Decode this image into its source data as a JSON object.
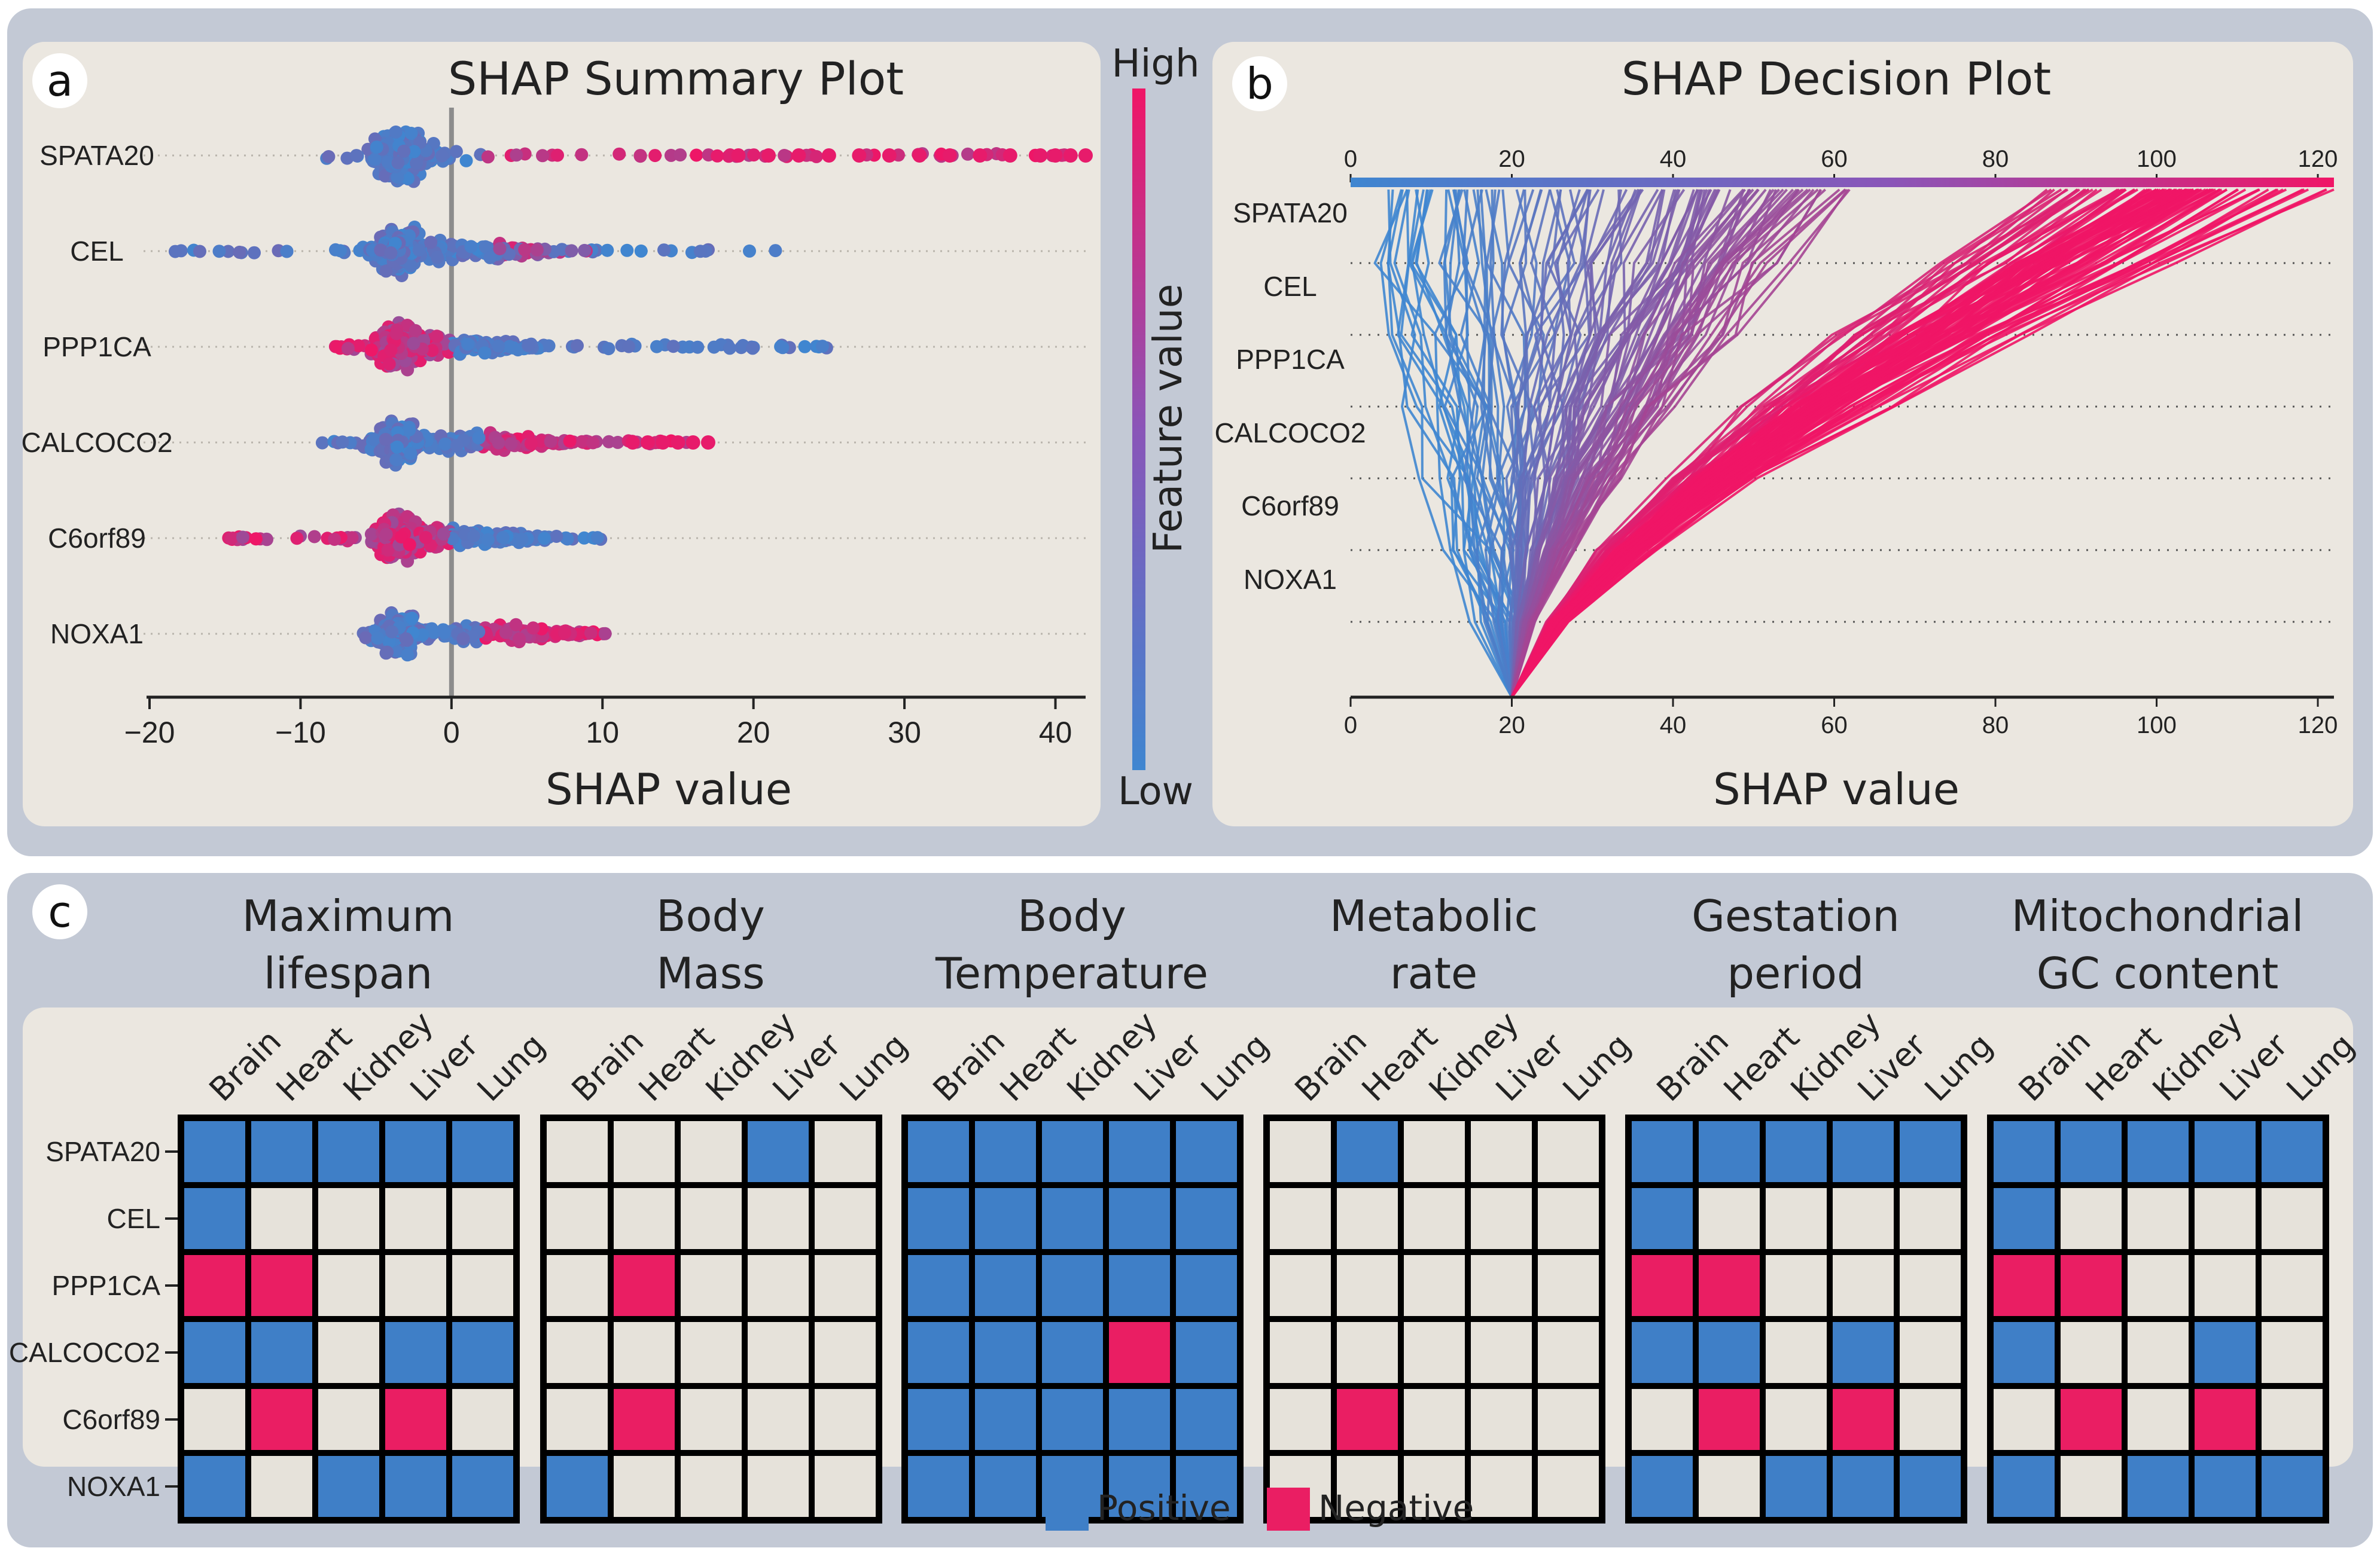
{
  "panel_letters": [
    "a",
    "b",
    "c"
  ],
  "colors": {
    "positive": "#3f7fc7",
    "negative": "#ea1e63",
    "neutral_cell": "#e6e2da",
    "panel_bg": "#ebe7e0",
    "outer_bg": "#c3c9d5",
    "low": "#3f86d0",
    "high": "#f01566"
  },
  "colorbar": {
    "high_label": "High",
    "low_label": "Low",
    "title": "Feature value"
  },
  "chart_data": [
    {
      "type": "scatter",
      "subtype": "shap-beeswarm",
      "title": "SHAP Summary Plot",
      "xlabel": "SHAP value",
      "ylabel": "",
      "xlim": [
        -20,
        42
      ],
      "xticks": [
        -20,
        -10,
        0,
        10,
        20,
        30,
        40
      ],
      "xtick_labels": [
        "−20",
        "−10",
        "0",
        "10",
        "20",
        "30",
        "40"
      ],
      "features": [
        "SPATA20",
        "CEL",
        "PPP1CA",
        "CALCOCO2",
        "C6orf89",
        "NOXA1"
      ],
      "series": [
        {
          "name": "SPATA20",
          "min": -9,
          "max": 42,
          "core_low": -6,
          "core_high": 0,
          "hi_value_side": "positive",
          "outliers_high": [
            19,
            21,
            23,
            25,
            27,
            29,
            31,
            33,
            35,
            37,
            39,
            40,
            41,
            42
          ]
        },
        {
          "name": "CEL",
          "min": -19,
          "max": 22,
          "core_low": -7,
          "core_high": 10,
          "hi_value_side": "mixed",
          "outliers_high": []
        },
        {
          "name": "PPP1CA",
          "min": -8,
          "max": 25,
          "core_low": -6,
          "core_high": 8,
          "hi_value_side": "negative",
          "outliers_high": []
        },
        {
          "name": "CALCOCO2",
          "min": -9,
          "max": 17,
          "core_low": -6,
          "core_high": 10,
          "hi_value_side": "positive",
          "outliers_high": [
            12,
            13,
            14,
            15,
            16,
            17
          ]
        },
        {
          "name": "C6orf89",
          "min": -15,
          "max": 10,
          "core_low": -6,
          "core_high": 8,
          "hi_value_side": "negative",
          "outliers_high": []
        },
        {
          "name": "NOXA1",
          "min": -6,
          "max": 11,
          "core_low": -5,
          "core_high": 11,
          "hi_value_side": "positive",
          "outliers_high": []
        }
      ]
    },
    {
      "type": "line",
      "subtype": "shap-decision",
      "title": "SHAP Decision Plot",
      "xlabel": "SHAP value",
      "xlim": [
        0,
        122
      ],
      "xticks": [
        0,
        20,
        40,
        60,
        80,
        100,
        120
      ],
      "xtick_labels": [
        "0",
        "20",
        "40",
        "60",
        "80",
        "100",
        "120"
      ],
      "base_value": 20,
      "features": [
        "SPATA20",
        "CEL",
        "PPP1CA",
        "CALCOCO2",
        "C6orf89",
        "NOXA1"
      ],
      "max_output": 122
    },
    {
      "type": "heatmap",
      "groups": [
        {
          "title_lines": [
            "Maximum",
            "lifespan"
          ],
          "matrix": [
            [
              "P",
              "P",
              "P",
              "P",
              "P"
            ],
            [
              "P",
              "N",
              "N",
              "N",
              "N"
            ],
            [
              "X",
              "X",
              "N",
              "N",
              "N"
            ],
            [
              "P",
              "P",
              "N",
              "P",
              "P"
            ],
            [
              "N",
              "X",
              "N",
              "X",
              "N"
            ],
            [
              "P",
              "N",
              "P",
              "P",
              "P"
            ]
          ]
        },
        {
          "title_lines": [
            "Body",
            "Mass"
          ],
          "matrix": [
            [
              "N",
              "N",
              "N",
              "P",
              "N"
            ],
            [
              "N",
              "N",
              "N",
              "N",
              "N"
            ],
            [
              "N",
              "X",
              "N",
              "N",
              "N"
            ],
            [
              "N",
              "N",
              "N",
              "N",
              "N"
            ],
            [
              "N",
              "X",
              "N",
              "N",
              "N"
            ],
            [
              "P",
              "N",
              "N",
              "N",
              "N"
            ]
          ]
        },
        {
          "title_lines": [
            "Body",
            "Temperature"
          ],
          "matrix": [
            [
              "P",
              "P",
              "P",
              "P",
              "P"
            ],
            [
              "P",
              "P",
              "P",
              "P",
              "P"
            ],
            [
              "P",
              "P",
              "P",
              "P",
              "P"
            ],
            [
              "P",
              "P",
              "P",
              "X",
              "P"
            ],
            [
              "P",
              "P",
              "P",
              "P",
              "P"
            ],
            [
              "P",
              "P",
              "P",
              "P",
              "P"
            ]
          ]
        },
        {
          "title_lines": [
            "Metabolic",
            "rate"
          ],
          "matrix": [
            [
              "N",
              "P",
              "N",
              "N",
              "N"
            ],
            [
              "N",
              "N",
              "N",
              "N",
              "N"
            ],
            [
              "N",
              "N",
              "N",
              "N",
              "N"
            ],
            [
              "N",
              "N",
              "N",
              "N",
              "N"
            ],
            [
              "N",
              "X",
              "N",
              "N",
              "N"
            ],
            [
              "N",
              "N",
              "N",
              "N",
              "N"
            ]
          ]
        },
        {
          "title_lines": [
            "Gestation",
            "period"
          ],
          "matrix": [
            [
              "P",
              "P",
              "P",
              "P",
              "P"
            ],
            [
              "P",
              "N",
              "N",
              "N",
              "N"
            ],
            [
              "X",
              "X",
              "N",
              "N",
              "N"
            ],
            [
              "P",
              "P",
              "N",
              "P",
              "N"
            ],
            [
              "N",
              "X",
              "N",
              "X",
              "N"
            ],
            [
              "P",
              "N",
              "P",
              "P",
              "P"
            ]
          ]
        },
        {
          "title_lines": [
            "Mitochondrial",
            "GC content"
          ],
          "matrix": [
            [
              "P",
              "P",
              "P",
              "P",
              "P"
            ],
            [
              "P",
              "N",
              "N",
              "N",
              "N"
            ],
            [
              "X",
              "X",
              "N",
              "N",
              "N"
            ],
            [
              "P",
              "N",
              "N",
              "P",
              "N"
            ],
            [
              "N",
              "X",
              "N",
              "X",
              "N"
            ],
            [
              "P",
              "N",
              "P",
              "P",
              "P"
            ]
          ]
        }
      ],
      "tissues": [
        "Brain",
        "Heart",
        "Kidney",
        "Liver",
        "Lung"
      ],
      "rows": [
        "SPATA20",
        "CEL",
        "PPP1CA",
        "CALCOCO2",
        "C6orf89",
        "NOXA1"
      ],
      "cell_codes": {
        "P": "Positive",
        "X": "Negative",
        "N": "None"
      }
    }
  ],
  "legend": {
    "positive_label": "Positive",
    "negative_label": "Negative"
  }
}
